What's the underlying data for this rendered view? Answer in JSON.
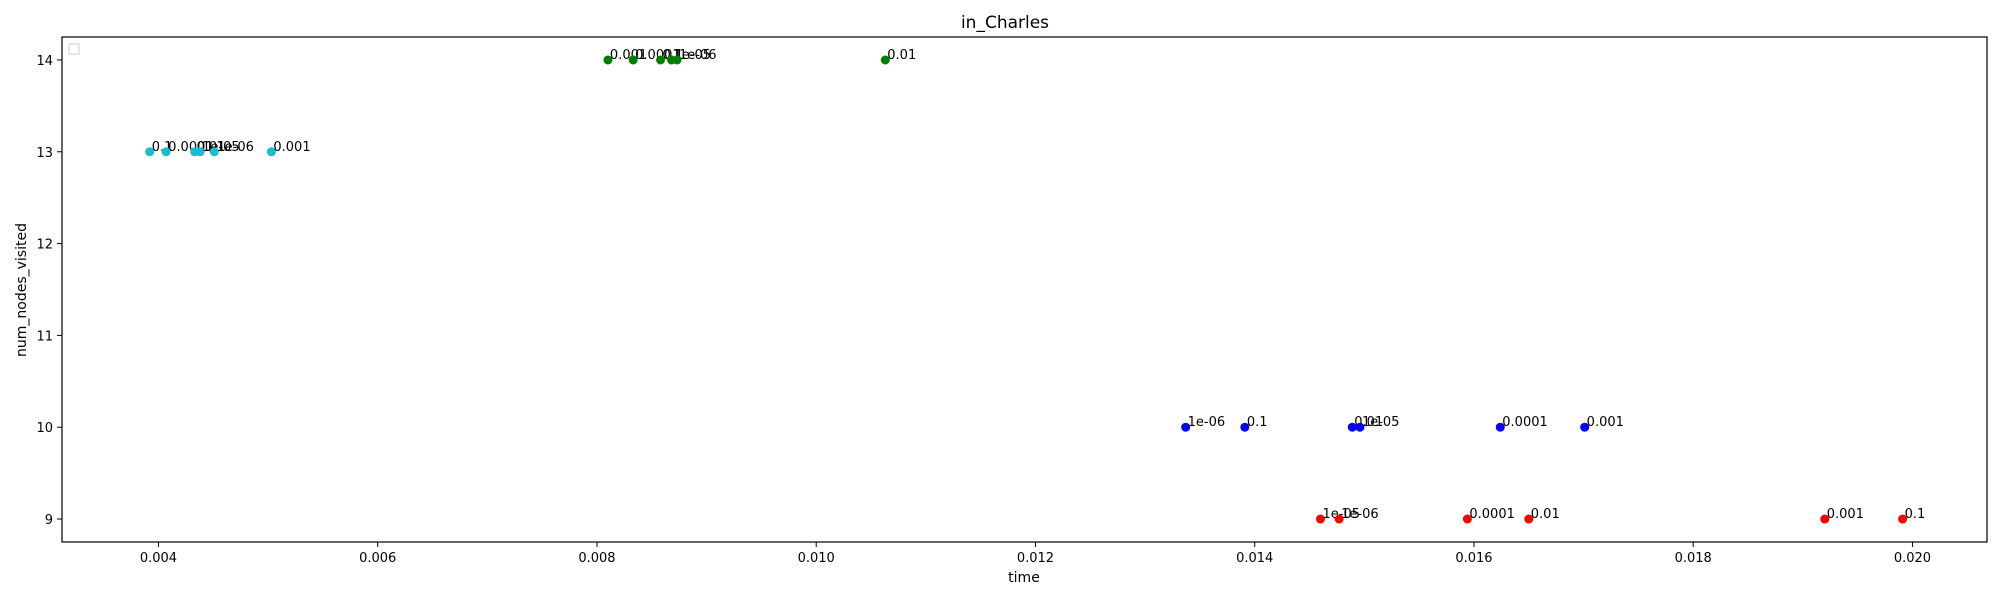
{
  "chart_data": {
    "type": "scatter",
    "title": "in_Charles",
    "xlabel": "time",
    "ylabel": "num_nodes_visited",
    "xlim": [
      0.00312,
      0.02068
    ],
    "ylim": [
      8.75,
      14.25
    ],
    "xticks": [
      0.004,
      0.006,
      0.008,
      0.01,
      0.012,
      0.014,
      0.016,
      0.018,
      0.02
    ],
    "xtick_labels": [
      "0.004",
      "0.006",
      "0.008",
      "0.010",
      "0.012",
      "0.014",
      "0.016",
      "0.018",
      "0.020"
    ],
    "yticks": [
      9,
      10,
      11,
      12,
      13,
      14
    ],
    "ytick_labels": [
      "9",
      "10",
      "11",
      "12",
      "13",
      "14"
    ],
    "grid": false,
    "legend": "top-left (empty)",
    "series": [
      {
        "color": "#17becf",
        "points": [
          {
            "x": 0.00392,
            "y": 13,
            "label": "0.1"
          },
          {
            "x": 0.00407,
            "y": 13,
            "label": "0.0001"
          },
          {
            "x": 0.00433,
            "y": 13,
            "label": "0.01"
          },
          {
            "x": 0.00438,
            "y": 13,
            "label": "1e-05"
          },
          {
            "x": 0.00451,
            "y": 13,
            "label": "1e-06"
          },
          {
            "x": 0.00503,
            "y": 13,
            "label": "0.001"
          }
        ]
      },
      {
        "color": "#008000",
        "points": [
          {
            "x": 0.0081,
            "y": 14,
            "label": "0.001"
          },
          {
            "x": 0.00833,
            "y": 14,
            "label": "0.0001"
          },
          {
            "x": 0.00858,
            "y": 14,
            "label": "0.1"
          },
          {
            "x": 0.00868,
            "y": 14,
            "label": "1e-05"
          },
          {
            "x": 0.00873,
            "y": 14,
            "label": "1e-06"
          },
          {
            "x": 0.01063,
            "y": 14,
            "label": "0.01"
          }
        ]
      },
      {
        "color": "#0000ff",
        "points": [
          {
            "x": 0.01337,
            "y": 10,
            "label": "1e-06"
          },
          {
            "x": 0.01391,
            "y": 10,
            "label": "0.1"
          },
          {
            "x": 0.01489,
            "y": 10,
            "label": "0.01"
          },
          {
            "x": 0.01496,
            "y": 10,
            "label": "1e-05"
          },
          {
            "x": 0.01624,
            "y": 10,
            "label": "0.0001"
          },
          {
            "x": 0.01701,
            "y": 10,
            "label": "0.001"
          }
        ]
      },
      {
        "color": "#ff0000",
        "points": [
          {
            "x": 0.0146,
            "y": 9,
            "label": "1e-05"
          },
          {
            "x": 0.01477,
            "y": 9,
            "label": "1e-06"
          },
          {
            "x": 0.01594,
            "y": 9,
            "label": "0.0001"
          },
          {
            "x": 0.0165,
            "y": 9,
            "label": "0.01"
          },
          {
            "x": 0.0192,
            "y": 9,
            "label": "0.001"
          },
          {
            "x": 0.01991,
            "y": 9,
            "label": "0.1"
          }
        ]
      }
    ]
  }
}
